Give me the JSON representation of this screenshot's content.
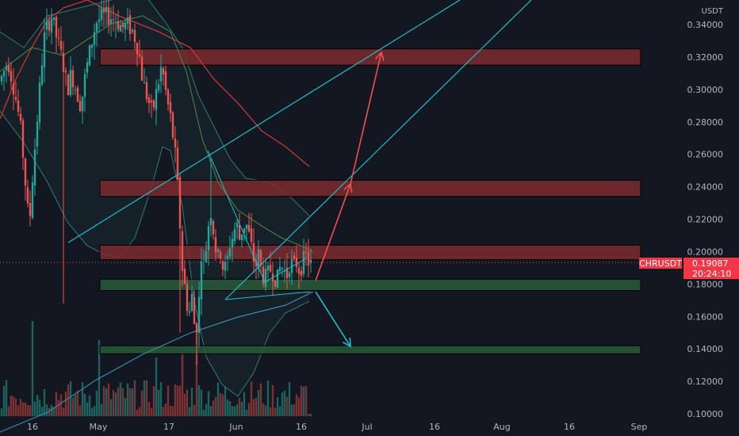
{
  "chart_data": {
    "type": "candlestick",
    "symbol": "CHRUSDT",
    "currency": "USDT",
    "last_price": "0.19087",
    "countdown": "20:24:10",
    "ylim": [
      0.097,
      0.352
    ],
    "y_ticks": [
      "0.34000",
      "0.32000",
      "0.30000",
      "0.28000",
      "0.26000",
      "0.24000",
      "0.22000",
      "0.20000",
      "0.18000",
      "0.16000",
      "0.14000",
      "0.12000",
      "0.10000"
    ],
    "x_ticks": [
      "16",
      "May",
      "17",
      "Jun",
      "16",
      "Jul",
      "16",
      "Aug",
      "16",
      "Sep"
    ],
    "grid": false,
    "zones": [
      {
        "kind": "resistance",
        "y_low": 0.315,
        "y_high": 0.325
      },
      {
        "kind": "resistance",
        "y_low": 0.234,
        "y_high": 0.244
      },
      {
        "kind": "resistance",
        "y_low": 0.195,
        "y_high": 0.204
      },
      {
        "kind": "support",
        "y_low": 0.176,
        "y_high": 0.183
      },
      {
        "kind": "support",
        "y_low": 0.137,
        "y_high": 0.142
      }
    ],
    "colors": {
      "background": "#131722",
      "up": "#26a69a",
      "down": "#ef5350",
      "resistance_fill": "#7a2a2e",
      "support_fill": "#2a5a38",
      "trendline": "#1fbfca",
      "bull_arrow": "#f0504f",
      "bear_arrow": "#1fbfca",
      "price_tag": "#f23645"
    }
  }
}
